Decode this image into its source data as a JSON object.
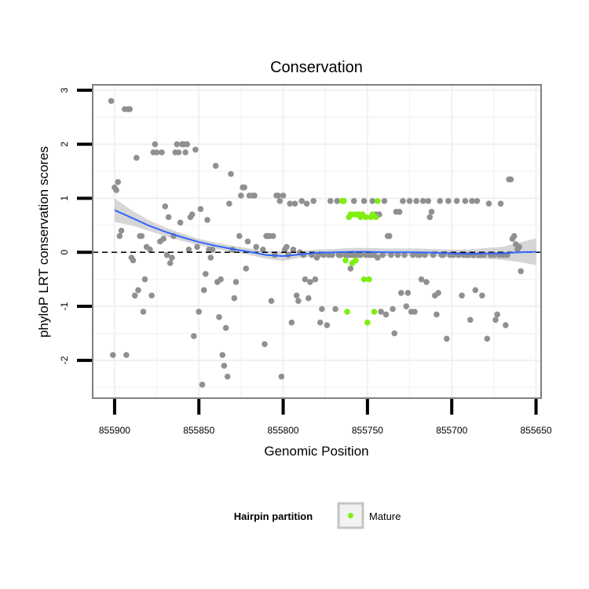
{
  "chart_data": {
    "type": "scatter",
    "title": "Conservation",
    "xlabel": "Genomic Position",
    "ylabel": "phyloP LRT conservation scores",
    "x_reversed": true,
    "xlim": [
      855913,
      855647
    ],
    "ylim": [
      -2.7,
      3.1
    ],
    "x_ticks": [
      855900,
      855850,
      855800,
      855750,
      855700,
      855650
    ],
    "x_tick_labels": [
      "855900",
      "855850",
      "855800",
      "855750",
      "855700",
      "855650"
    ],
    "y_ticks": [
      -2,
      -1,
      0,
      1,
      2,
      3
    ],
    "y_tick_labels": [
      "-2",
      "-1",
      "0",
      "1",
      "2",
      "3"
    ],
    "reference_line": {
      "y": 0,
      "style": "dashed",
      "color": "#000000"
    },
    "grid": true,
    "colors": {
      "background_point": "#909090",
      "mature_point": "#80ee10",
      "smooth_line": "#3366ff",
      "confidence_band": "#c8c8c8",
      "grid": "#f0f0f0",
      "panel_border": "#808080"
    },
    "legend": {
      "title": "Hairpin partition",
      "entries": [
        {
          "label": "Mature",
          "color": "#80ee10"
        }
      ],
      "position": "bottom"
    },
    "series": [
      {
        "name": "Hairpin",
        "color": "#909090",
        "points": [
          [
            855902,
            2.8
          ],
          [
            855900,
            1.2
          ],
          [
            855899,
            1.15
          ],
          [
            855898,
            1.3
          ],
          [
            855896,
            0.4
          ],
          [
            855897,
            0.3
          ],
          [
            855901,
            -1.9
          ],
          [
            855893,
            -1.9
          ],
          [
            855894,
            2.65
          ],
          [
            855892,
            2.65
          ],
          [
            855891,
            2.65
          ],
          [
            855890,
            -0.1
          ],
          [
            855889,
            -0.15
          ],
          [
            855888,
            -0.8
          ],
          [
            855887,
            1.75
          ],
          [
            855886,
            -0.7
          ],
          [
            855885,
            0.3
          ],
          [
            855884,
            0.3
          ],
          [
            855883,
            -1.1
          ],
          [
            855882,
            -0.5
          ],
          [
            855881,
            0.1
          ],
          [
            855879,
            0.05
          ],
          [
            855878,
            -0.8
          ],
          [
            855877,
            1.85
          ],
          [
            855876,
            2.0
          ],
          [
            855875,
            1.85
          ],
          [
            855873,
            0.2
          ],
          [
            855872,
            1.85
          ],
          [
            855871,
            0.25
          ],
          [
            855870,
            0.85
          ],
          [
            855869,
            -0.05
          ],
          [
            855868,
            0.65
          ],
          [
            855867,
            -0.2
          ],
          [
            855866,
            -0.1
          ],
          [
            855865,
            0.3
          ],
          [
            855864,
            1.85
          ],
          [
            855863,
            2.0
          ],
          [
            855862,
            1.85
          ],
          [
            855861,
            0.55
          ],
          [
            855860,
            2.0
          ],
          [
            855859,
            2.0
          ],
          [
            855858,
            1.85
          ],
          [
            855857,
            2.0
          ],
          [
            855856,
            0.05
          ],
          [
            855855,
            0.65
          ],
          [
            855854,
            0.7
          ],
          [
            855853,
            -1.55
          ],
          [
            855852,
            1.9
          ],
          [
            855851,
            0.1
          ],
          [
            855850,
            -1.1
          ],
          [
            855849,
            0.8
          ],
          [
            855848,
            -2.45
          ],
          [
            855847,
            -0.7
          ],
          [
            855846,
            -0.4
          ],
          [
            855845,
            0.6
          ],
          [
            855844,
            0.05
          ],
          [
            855843,
            -0.1
          ],
          [
            855842,
            0.05
          ],
          [
            855840,
            1.6
          ],
          [
            855839,
            -0.55
          ],
          [
            855838,
            -1.2
          ],
          [
            855837,
            -0.5
          ],
          [
            855836,
            -1.9
          ],
          [
            855835,
            -2.1
          ],
          [
            855834,
            -1.4
          ],
          [
            855833,
            -2.3
          ],
          [
            855832,
            0.9
          ],
          [
            855831,
            1.45
          ],
          [
            855830,
            0.05
          ],
          [
            855829,
            -0.85
          ],
          [
            855828,
            -0.55
          ],
          [
            855826,
            0.3
          ],
          [
            855825,
            1.05
          ],
          [
            855824,
            1.2
          ],
          [
            855823,
            1.2
          ],
          [
            855822,
            -0.3
          ],
          [
            855821,
            0.2
          ],
          [
            855820,
            1.05
          ],
          [
            855818,
            1.05
          ],
          [
            855817,
            1.05
          ],
          [
            855816,
            0.1
          ],
          [
            855812,
            0.05
          ],
          [
            855811,
            -1.7
          ],
          [
            855810,
            0.3
          ],
          [
            855809,
            0.3
          ],
          [
            855808,
            0.3
          ],
          [
            855807,
            -0.9
          ],
          [
            855806,
            0.3
          ],
          [
            855805,
            -0.05
          ],
          [
            855804,
            1.05
          ],
          [
            855803,
            1.05
          ],
          [
            855802,
            0.95
          ],
          [
            855801,
            -2.3
          ],
          [
            855800,
            1.05
          ],
          [
            855799,
            0.05
          ],
          [
            855798,
            0.1
          ],
          [
            855797,
            -0.05
          ],
          [
            855796,
            0.9
          ],
          [
            855795,
            -1.3
          ],
          [
            855794,
            0.05
          ],
          [
            855793,
            0.9
          ],
          [
            855792,
            -0.8
          ],
          [
            855791,
            -0.9
          ],
          [
            855790,
            0.0
          ],
          [
            855789,
            0.95
          ],
          [
            855788,
            -0.05
          ],
          [
            855787,
            -0.5
          ],
          [
            855786,
            0.9
          ],
          [
            855785,
            -0.85
          ],
          [
            855784,
            -0.55
          ],
          [
            855783,
            -0.05
          ],
          [
            855782,
            0.95
          ],
          [
            855781,
            -0.5
          ],
          [
            855780,
            -0.1
          ],
          [
            855779,
            -0.05
          ],
          [
            855778,
            -1.3
          ],
          [
            855777,
            -1.05
          ],
          [
            855776,
            -0.05
          ],
          [
            855774,
            -1.35
          ],
          [
            855773,
            -0.05
          ],
          [
            855772,
            0.95
          ],
          [
            855771,
            -0.05
          ],
          [
            855769,
            -1.05
          ],
          [
            855768,
            0.95
          ],
          [
            855767,
            -0.05
          ],
          [
            855766,
            -0.05
          ],
          [
            855764,
            0.95
          ],
          [
            855763,
            -0.05
          ],
          [
            855762,
            -0.05
          ],
          [
            855761,
            -0.05
          ],
          [
            855760,
            -0.3
          ],
          [
            855759,
            -0.05
          ],
          [
            855758,
            0.95
          ],
          [
            855757,
            -0.05
          ],
          [
            855755,
            -0.05
          ],
          [
            855754,
            -0.05
          ],
          [
            855752,
            0.95
          ],
          [
            855751,
            -0.05
          ],
          [
            855749,
            -0.05
          ],
          [
            855748,
            -0.05
          ],
          [
            855747,
            0.95
          ],
          [
            855746,
            -0.05
          ],
          [
            855745,
            0.7
          ],
          [
            855744,
            -0.1
          ],
          [
            855743,
            0.7
          ],
          [
            855742,
            -1.1
          ],
          [
            855741,
            -0.05
          ],
          [
            855740,
            0.95
          ],
          [
            855739,
            -1.15
          ],
          [
            855738,
            0.3
          ],
          [
            855737,
            0.3
          ],
          [
            855736,
            -0.05
          ],
          [
            855735,
            -1.05
          ],
          [
            855734,
            -1.5
          ],
          [
            855733,
            0.75
          ],
          [
            855732,
            -0.05
          ],
          [
            855731,
            0.75
          ],
          [
            855730,
            -0.75
          ],
          [
            855729,
            0.95
          ],
          [
            855728,
            -0.05
          ],
          [
            855727,
            -1.0
          ],
          [
            855726,
            -0.75
          ],
          [
            855725,
            0.95
          ],
          [
            855724,
            -1.1
          ],
          [
            855723,
            -0.05
          ],
          [
            855722,
            -1.1
          ],
          [
            855721,
            0.95
          ],
          [
            855720,
            -0.05
          ],
          [
            855719,
            -0.05
          ],
          [
            855718,
            -0.5
          ],
          [
            855717,
            0.95
          ],
          [
            855716,
            -0.05
          ],
          [
            855715,
            -0.55
          ],
          [
            855714,
            0.95
          ],
          [
            855713,
            0.65
          ],
          [
            855712,
            0.75
          ],
          [
            855711,
            -0.05
          ],
          [
            855710,
            -0.8
          ],
          [
            855709,
            -1.15
          ],
          [
            855708,
            -0.75
          ],
          [
            855707,
            0.95
          ],
          [
            855706,
            -0.05
          ],
          [
            855705,
            -0.05
          ],
          [
            855703,
            -1.6
          ],
          [
            855702,
            0.95
          ],
          [
            855701,
            -0.05
          ],
          [
            855699,
            -0.05
          ],
          [
            855697,
            0.95
          ],
          [
            855696,
            -0.05
          ],
          [
            855694,
            -0.8
          ],
          [
            855693,
            -0.05
          ],
          [
            855692,
            0.95
          ],
          [
            855691,
            -0.05
          ],
          [
            855690,
            -0.05
          ],
          [
            855689,
            -1.25
          ],
          [
            855688,
            0.95
          ],
          [
            855687,
            -0.05
          ],
          [
            855686,
            -0.7
          ],
          [
            855685,
            0.95
          ],
          [
            855684,
            -0.05
          ],
          [
            855683,
            -0.05
          ],
          [
            855682,
            -0.8
          ],
          [
            855681,
            -0.05
          ],
          [
            855679,
            -1.6
          ],
          [
            855678,
            0.9
          ],
          [
            855677,
            -0.05
          ],
          [
            855675,
            -0.05
          ],
          [
            855674,
            -1.25
          ],
          [
            855673,
            -1.15
          ],
          [
            855672,
            -0.05
          ],
          [
            855671,
            0.9
          ],
          [
            855670,
            -0.05
          ],
          [
            855669,
            -0.05
          ],
          [
            855668,
            -1.35
          ],
          [
            855667,
            -0.05
          ],
          [
            855666,
            1.35
          ],
          [
            855665,
            1.35
          ],
          [
            855664,
            0.25
          ],
          [
            855663,
            0.3
          ],
          [
            855662,
            0.15
          ],
          [
            855661,
            0.05
          ],
          [
            855660,
            0.1
          ],
          [
            855659,
            -0.35
          ]
        ]
      },
      {
        "name": "Mature",
        "color": "#80ee10",
        "points": [
          [
            855765,
            0.95
          ],
          [
            855764,
            0.95
          ],
          [
            855763,
            -0.15
          ],
          [
            855762,
            -1.1
          ],
          [
            855761,
            0.65
          ],
          [
            855760,
            0.7
          ],
          [
            855759,
            -0.2
          ],
          [
            855758,
            0.7
          ],
          [
            855757,
            -0.15
          ],
          [
            855756,
            0.7
          ],
          [
            855755,
            0.7
          ],
          [
            855754,
            0.65
          ],
          [
            855753,
            0.7
          ],
          [
            855752,
            -0.5
          ],
          [
            855751,
            0.65
          ],
          [
            855750,
            -1.3
          ],
          [
            855749,
            -0.5
          ],
          [
            855748,
            0.65
          ],
          [
            855747,
            0.7
          ],
          [
            855746,
            -1.1
          ],
          [
            855745,
            0.65
          ],
          [
            855744,
            0.95
          ]
        ]
      }
    ],
    "smooth": {
      "method": "loess",
      "x": [
        855900,
        855890,
        855880,
        855870,
        855860,
        855850,
        855840,
        855830,
        855820,
        855810,
        855800,
        855790,
        855780,
        855770,
        855760,
        855750,
        855740,
        855730,
        855720,
        855710,
        855700,
        855690,
        855680,
        855670,
        855660,
        855650
      ],
      "y": [
        0.78,
        0.64,
        0.5,
        0.38,
        0.28,
        0.19,
        0.12,
        0.06,
        0.01,
        -0.05,
        -0.07,
        -0.04,
        -0.01,
        0.0,
        0.01,
        0.01,
        0.0,
        0.0,
        0.0,
        -0.01,
        -0.02,
        -0.03,
        -0.02,
        -0.02,
        0.0,
        0.01
      ],
      "se_lower": [
        0.56,
        0.5,
        0.4,
        0.3,
        0.21,
        0.13,
        0.06,
        0.0,
        -0.05,
        -0.12,
        -0.16,
        -0.1,
        -0.07,
        -0.06,
        -0.06,
        -0.06,
        -0.07,
        -0.07,
        -0.07,
        -0.08,
        -0.09,
        -0.11,
        -0.12,
        -0.14,
        -0.18,
        -0.24
      ],
      "se_upper": [
        1.0,
        0.78,
        0.6,
        0.46,
        0.35,
        0.25,
        0.18,
        0.12,
        0.07,
        0.02,
        0.02,
        0.02,
        0.05,
        0.06,
        0.08,
        0.08,
        0.07,
        0.07,
        0.07,
        0.06,
        0.05,
        0.05,
        0.08,
        0.1,
        0.18,
        0.26
      ]
    }
  }
}
